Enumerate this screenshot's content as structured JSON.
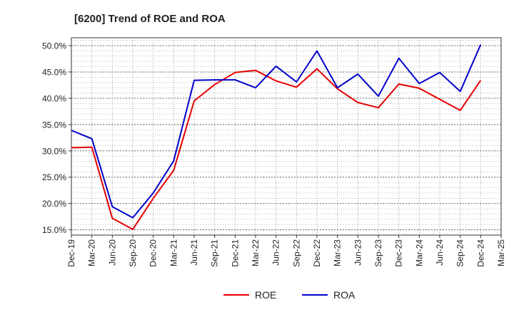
{
  "chart_data": {
    "type": "line",
    "title": "[6200]  Trend of ROE and ROA",
    "xlabel": "",
    "ylabel": "",
    "categories": [
      "Dec-19",
      "Mar-20",
      "Jun-20",
      "Sep-20",
      "Dec-20",
      "Mar-21",
      "Jun-21",
      "Sep-21",
      "Dec-21",
      "Mar-22",
      "Jun-22",
      "Sep-22",
      "Dec-22",
      "Mar-23",
      "Jun-23",
      "Sep-23",
      "Dec-23",
      "Mar-24",
      "Jun-24",
      "Sep-24",
      "Dec-24",
      "Mar-25"
    ],
    "ylim": [
      14.0,
      51.5
    ],
    "yticks": [
      15.0,
      20.0,
      25.0,
      30.0,
      35.0,
      40.0,
      45.0,
      50.0
    ],
    "ytick_labels": [
      "15.0%",
      "20.0%",
      "25.0%",
      "30.0%",
      "35.0%",
      "40.0%",
      "45.0%",
      "50.0%"
    ],
    "grid": true,
    "legend": "bottom-center",
    "series": [
      {
        "name": "ROE",
        "color": "#e60000",
        "values": [
          30.6,
          30.7,
          17.2,
          15.1,
          21.0,
          26.3,
          39.5,
          42.6,
          44.9,
          45.3,
          43.3,
          42.1,
          45.6,
          41.8,
          39.2,
          38.2,
          42.7,
          41.9,
          39.8,
          37.7,
          43.4,
          null
        ]
      },
      {
        "name": "ROA",
        "color": "#0000cc",
        "values": [
          33.9,
          32.3,
          19.4,
          17.3,
          22.0,
          28.1,
          43.4,
          43.5,
          43.5,
          42.0,
          46.1,
          43.1,
          49.0,
          42.0,
          44.6,
          40.4,
          47.6,
          42.8,
          44.9,
          41.3,
          50.2,
          null
        ]
      }
    ]
  }
}
